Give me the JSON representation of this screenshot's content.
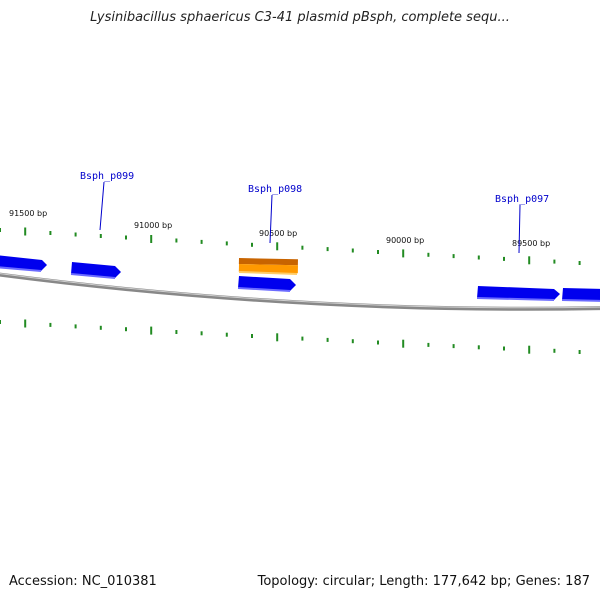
{
  "title": "Lysinibacillus sphaericus C3-41 plasmid pBsph, complete sequ...",
  "footer": {
    "accession_label": "Accession:",
    "accession": "NC_010381",
    "topology_label": "Topology:",
    "topology": "circular",
    "length_label": "Length:",
    "length": "177,642 bp",
    "genes_label": "Genes:",
    "genes": "187"
  },
  "colors": {
    "gene": "#0000ee",
    "highlight": "#ff9900",
    "tick": "#228b22",
    "backbone": "#888888"
  },
  "position_labels": [
    {
      "text": "91500 bp",
      "pos": 91500
    },
    {
      "text": "91000 bp",
      "pos": 91000
    },
    {
      "text": "90500 bp",
      "pos": 90500
    },
    {
      "text": "90000 bp",
      "pos": 90000
    },
    {
      "text": "89500 bp",
      "pos": 89500
    }
  ],
  "gene_labels": [
    {
      "text": "Bsph_p099"
    },
    {
      "text": "Bsph_p098"
    },
    {
      "text": "Bsph_p097"
    }
  ]
}
